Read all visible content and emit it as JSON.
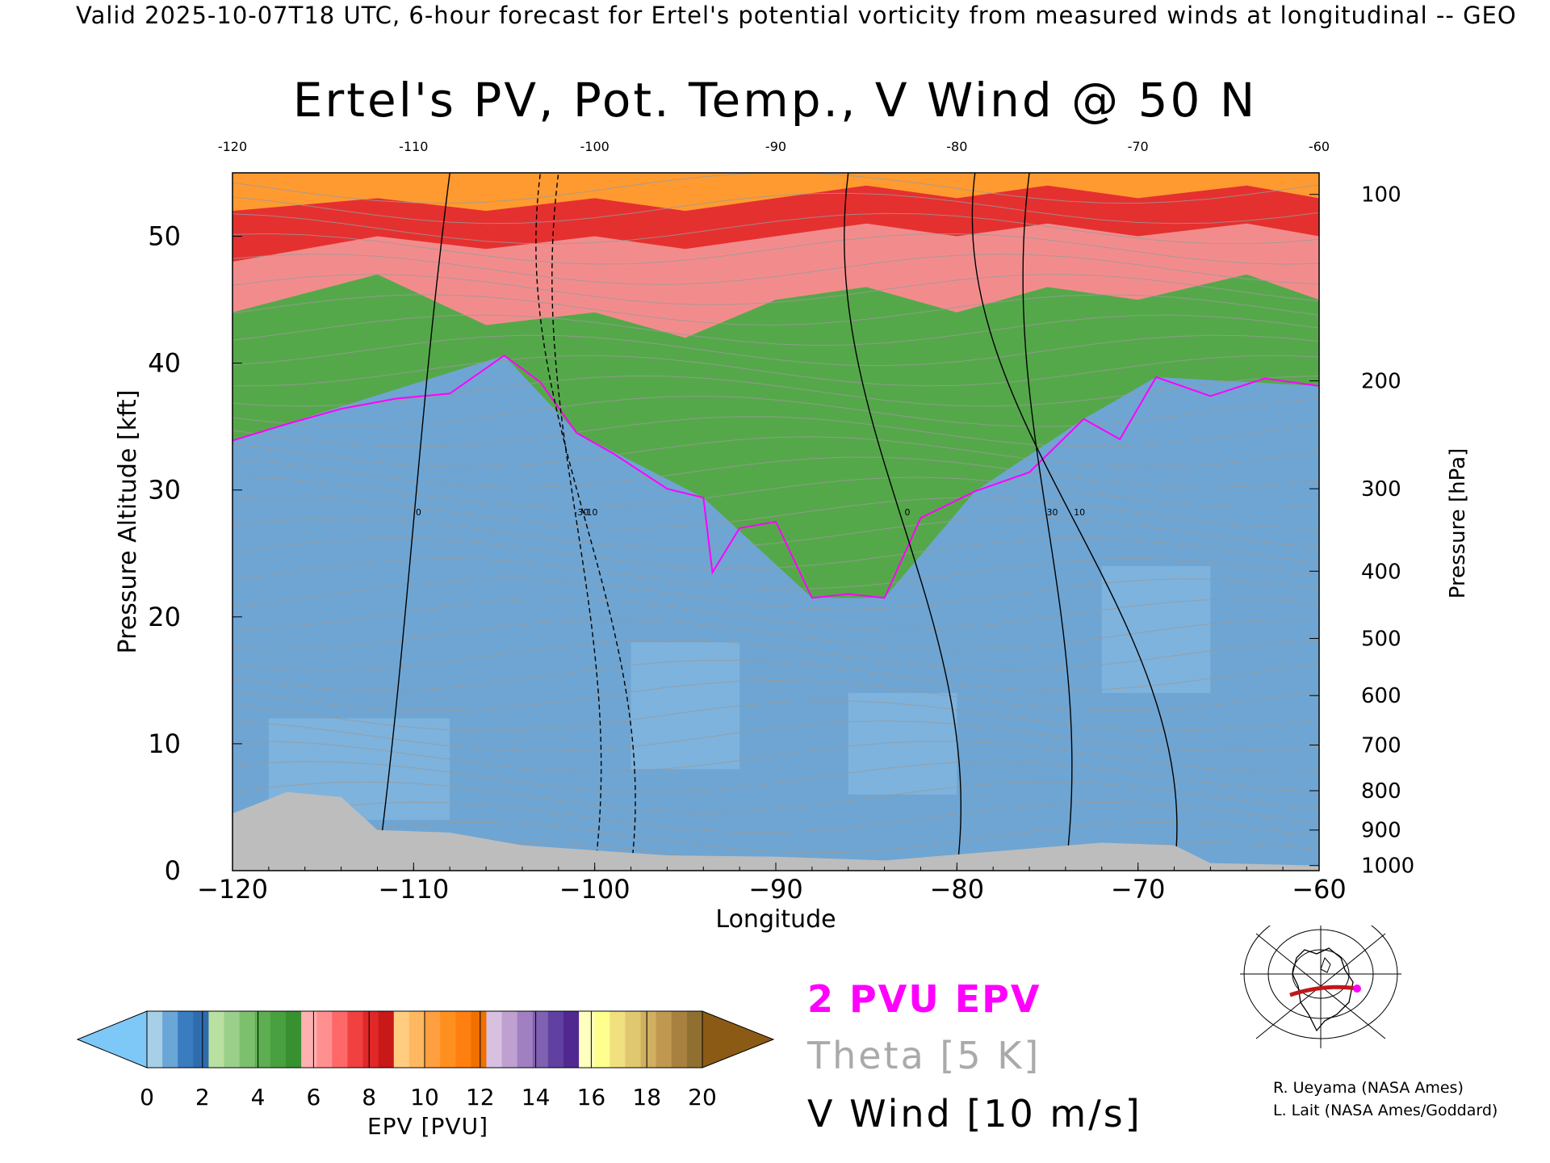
{
  "header": {
    "valid_line": "Valid 2025-10-07T18 UTC, 6-hour forecast for Ertel's potential vorticity from measured winds at longitudinal -- GEO",
    "title": "Ertel's PV, Pot. Temp., V Wind @ 50 N"
  },
  "legend": {
    "pvu_line": "2 PVU EPV",
    "theta_line": "Theta [5 K]",
    "vwind_line": "V Wind [10 m/s]",
    "pvu_color": "#ff00ff",
    "theta_color": "#aaaaaa",
    "vwind_color": "#000000"
  },
  "credits": {
    "line1": "R. Ueyama (NASA Ames)",
    "line2": "L. Lait (NASA Ames/Goddard)"
  },
  "colorbar": {
    "label": "EPV [PVU]",
    "ticks": [
      "0",
      "2",
      "4",
      "6",
      "8",
      "10",
      "12",
      "14",
      "16",
      "18",
      "20"
    ],
    "under_color": "#7ec8f8",
    "over_color": "#8b5a14",
    "colors": [
      "#a8cfe8",
      "#6aa6d6",
      "#3a7cc0",
      "#2e6cae",
      "#b8e0a0",
      "#9ad08a",
      "#7cc06e",
      "#5cae50",
      "#48a040",
      "#389030",
      "#ffb0b0",
      "#ff9090",
      "#ff6868",
      "#f04040",
      "#e02828",
      "#c81818",
      "#ffcc80",
      "#ffb860",
      "#ffa040",
      "#ff9020",
      "#ff8010",
      "#f07000",
      "#d8c0e0",
      "#c0a0d0",
      "#a080c0",
      "#8060b0",
      "#6040a0",
      "#502890",
      "#ffffc0",
      "#ffff90",
      "#f0e080",
      "#e0c870",
      "#d0b060",
      "#c09850",
      "#a88040",
      "#907030"
    ]
  },
  "chart_data": {
    "type": "heatmap",
    "title": "Ertel's PV, Pot. Temp., V Wind @ 50 N",
    "xlabel": "Longitude",
    "ylabel": "Pressure Altitude [kft]",
    "ylabel_right": "Pressure [hPa]",
    "xlim": [
      -120,
      -60
    ],
    "ylim": [
      0,
      55
    ],
    "x_ticks": [
      -120,
      -110,
      -100,
      -90,
      -80,
      -70,
      -60
    ],
    "x_tick_labels": [
      "−120",
      "−110",
      "−100",
      "−90",
      "−80",
      "−70",
      "−60"
    ],
    "top_tick_labels": [
      "-120",
      "-110",
      "-100",
      "-90",
      "-80",
      "-70",
      "-60"
    ],
    "y_ticks": [
      0,
      10,
      20,
      30,
      40,
      50
    ],
    "pressure_ticks": [
      {
        "label": "100",
        "kft": 53.3
      },
      {
        "label": "200",
        "kft": 38.6
      },
      {
        "label": "300",
        "kft": 30.1
      },
      {
        "label": "400",
        "kft": 23.6
      },
      {
        "label": "500",
        "kft": 18.3
      },
      {
        "label": "600",
        "kft": 13.8
      },
      {
        "label": "700",
        "kft": 9.9
      },
      {
        "label": "800",
        "kft": 6.3
      },
      {
        "label": "900",
        "kft": 3.2
      },
      {
        "label": "1000",
        "kft": 0.4
      }
    ],
    "tropopause_2pvu": [
      {
        "lon": -120,
        "kft": 33.9
      },
      {
        "lon": -117,
        "kft": 35.2
      },
      {
        "lon": -114,
        "kft": 36.4
      },
      {
        "lon": -111,
        "kft": 37.2
      },
      {
        "lon": -108,
        "kft": 37.6
      },
      {
        "lon": -105,
        "kft": 40.6
      },
      {
        "lon": -103,
        "kft": 38.5
      },
      {
        "lon": -101,
        "kft": 34.5
      },
      {
        "lon": -99,
        "kft": 32.9
      },
      {
        "lon": -96,
        "kft": 30.1
      },
      {
        "lon": -94,
        "kft": 29.4
      },
      {
        "lon": -93.5,
        "kft": 23.5
      },
      {
        "lon": -92,
        "kft": 27.0
      },
      {
        "lon": -90,
        "kft": 27.5
      },
      {
        "lon": -88,
        "kft": 21.5
      },
      {
        "lon": -86,
        "kft": 21.8
      },
      {
        "lon": -84,
        "kft": 21.5
      },
      {
        "lon": -82,
        "kft": 27.8
      },
      {
        "lon": -79,
        "kft": 29.9
      },
      {
        "lon": -76,
        "kft": 31.4
      },
      {
        "lon": -73,
        "kft": 35.6
      },
      {
        "lon": -71,
        "kft": 34.0
      },
      {
        "lon": -69,
        "kft": 38.9
      },
      {
        "lon": -66,
        "kft": 37.4
      },
      {
        "lon": -63,
        "kft": 38.8
      },
      {
        "lon": -60,
        "kft": 38.2
      }
    ],
    "pv_layers": [
      {
        "name": "blue",
        "color": "#6ea5d3",
        "top": [
          [
            -120,
            33.9
          ],
          [
            -105,
            40.6
          ],
          [
            -101,
            34.5
          ],
          [
            -94,
            29.4
          ],
          [
            -88,
            21.5
          ],
          [
            -84,
            21.5
          ],
          [
            -79,
            29.9
          ],
          [
            -73,
            35.6
          ],
          [
            -69,
            38.9
          ],
          [
            -60,
            38.2
          ]
        ]
      },
      {
        "name": "green",
        "color": "#55a84a",
        "top": [
          [
            -120,
            44
          ],
          [
            -112,
            47
          ],
          [
            -106,
            43
          ],
          [
            -100,
            44
          ],
          [
            -95,
            42
          ],
          [
            -90,
            45
          ],
          [
            -85,
            46
          ],
          [
            -80,
            44
          ],
          [
            -75,
            46
          ],
          [
            -70,
            45
          ],
          [
            -64,
            47
          ],
          [
            -60,
            45
          ]
        ]
      },
      {
        "name": "pink",
        "color": "#f28c8c",
        "top": [
          [
            -120,
            48
          ],
          [
            -112,
            50
          ],
          [
            -106,
            49
          ],
          [
            -100,
            50
          ],
          [
            -95,
            49
          ],
          [
            -90,
            50
          ],
          [
            -85,
            51
          ],
          [
            -80,
            50
          ],
          [
            -75,
            51
          ],
          [
            -70,
            50
          ],
          [
            -64,
            51
          ],
          [
            -60,
            50
          ]
        ]
      },
      {
        "name": "red",
        "color": "#e53030",
        "top": [
          [
            -120,
            52
          ],
          [
            -112,
            53
          ],
          [
            -106,
            52
          ],
          [
            -100,
            53
          ],
          [
            -95,
            52
          ],
          [
            -90,
            53
          ],
          [
            -85,
            54
          ],
          [
            -80,
            53
          ],
          [
            -75,
            54
          ],
          [
            -70,
            53
          ],
          [
            -64,
            54
          ],
          [
            -60,
            53
          ]
        ]
      },
      {
        "name": "orange",
        "color": "#ff9a30",
        "top": [
          [
            -120,
            55
          ],
          [
            -60,
            55
          ]
        ]
      }
    ],
    "v_wind_contours": [
      {
        "label": "0",
        "lon_at_bottom": -112,
        "lon_at_top": -108
      },
      {
        "label": "-10",
        "lon_at_bottom": -98,
        "lon_at_top": -103
      },
      {
        "label": "-30",
        "lon_at_bottom": -100,
        "lon_at_top": -102
      },
      {
        "label": "0",
        "lon_at_bottom": -80,
        "lon_at_top": -86
      },
      {
        "label": "10",
        "lon_at_bottom": -68,
        "lon_at_top": -79
      },
      {
        "label": "30",
        "lon_at_bottom": -74,
        "lon_at_top": -76
      }
    ],
    "topography_kft": [
      {
        "lon": -120,
        "kft": 4.5
      },
      {
        "lon": -117,
        "kft": 6.2
      },
      {
        "lon": -114,
        "kft": 5.8
      },
      {
        "lon": -112,
        "kft": 3.2
      },
      {
        "lon": -108,
        "kft": 3.0
      },
      {
        "lon": -104,
        "kft": 2.0
      },
      {
        "lon": -100,
        "kft": 1.6
      },
      {
        "lon": -96,
        "kft": 1.2
      },
      {
        "lon": -90,
        "kft": 1.1
      },
      {
        "lon": -84,
        "kft": 0.8
      },
      {
        "lon": -78,
        "kft": 1.5
      },
      {
        "lon": -72,
        "kft": 2.2
      },
      {
        "lon": -68,
        "kft": 2.0
      },
      {
        "lon": -66,
        "kft": 0.6
      },
      {
        "lon": -60,
        "kft": 0.4
      }
    ]
  }
}
